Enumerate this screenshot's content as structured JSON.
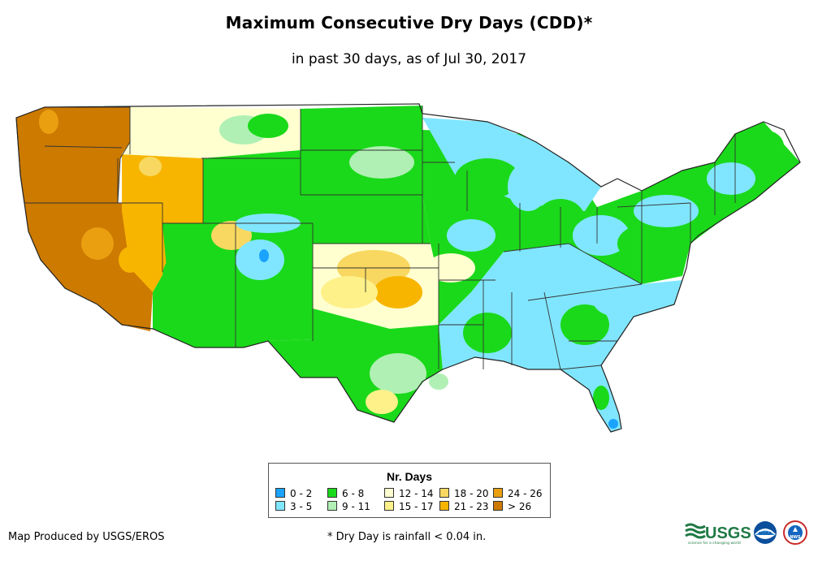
{
  "title": "Maximum Consecutive Dry Days (CDD)*",
  "subtitle": "in past 30 days, as of Jul 30, 2017",
  "legend": {
    "title": "Nr. Days",
    "items": [
      {
        "label": "0 - 2",
        "color": "#1aa3ff"
      },
      {
        "label": "3 - 5",
        "color": "#80e6ff"
      },
      {
        "label": "6 - 8",
        "color": "#1ad91a"
      },
      {
        "label": "9 - 11",
        "color": "#b0f0b4"
      },
      {
        "label": "12 - 14",
        "color": "#ffffd0"
      },
      {
        "label": "15 - 17",
        "color": "#fff18a"
      },
      {
        "label": "18 - 20",
        "color": "#f8d860"
      },
      {
        "label": "21 - 23",
        "color": "#f7b500"
      },
      {
        "label": "24 - 26",
        "color": "#e99f10"
      },
      {
        "label": "> 26",
        "color": "#cc7a00"
      }
    ]
  },
  "footer": {
    "credit": "Map Produced by USGS/EROS",
    "footnote": "* Dry Day is rainfall < 0.04 in."
  },
  "logos": {
    "usgs_text": "USGS",
    "usgs_tagline": "science for a changing world",
    "usgs_color": "#1f7a45",
    "noaa_text": "NOAA",
    "nws_text": "NWS"
  },
  "regions": [
    {
      "name": "pacific-northwest",
      "class": "> 26"
    },
    {
      "name": "california-great-basin",
      "class": "> 26"
    },
    {
      "name": "intermountain-west",
      "class": "21 - 23"
    },
    {
      "name": "northern-rockies",
      "class": "12 - 14"
    },
    {
      "name": "southwest",
      "class": "6 - 8"
    },
    {
      "name": "northern-plains",
      "class": "6 - 8"
    },
    {
      "name": "central-plains",
      "class": "6 - 8"
    },
    {
      "name": "southern-plains",
      "class": "12 - 14"
    },
    {
      "name": "texas",
      "class": "6 - 8"
    },
    {
      "name": "midwest",
      "class": "6 - 8"
    },
    {
      "name": "great-lakes",
      "class": "3 - 5"
    },
    {
      "name": "northeast",
      "class": "6 - 8"
    },
    {
      "name": "southeast",
      "class": "3 - 5"
    },
    {
      "name": "florida",
      "class": "3 - 5"
    }
  ]
}
